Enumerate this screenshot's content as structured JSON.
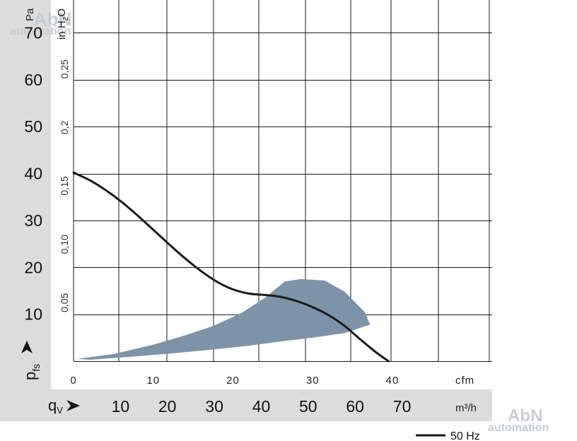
{
  "chart_data": {
    "type": "line",
    "y_left": {
      "unit": "Pa",
      "ticks": [
        10,
        20,
        30,
        40,
        50,
        60,
        70
      ],
      "range": [
        0,
        77
      ]
    },
    "y_right": {
      "unit": "in H₂O",
      "unit_base": "in H",
      "unit_sub": "2",
      "unit_end": "O",
      "ticks": [
        0.05,
        0.1,
        0.15,
        0.2,
        0.25
      ],
      "tick_labels": [
        "0,05",
        "0,10",
        "0,15",
        "0,2",
        "0,25"
      ]
    },
    "x_top": {
      "unit": "cfm",
      "ticks": [
        0,
        10,
        20,
        30,
        40
      ],
      "range": [
        0,
        52.5
      ]
    },
    "x_bottom": {
      "unit": "m³/h",
      "symbol": "qV",
      "ticks": [
        10,
        20,
        30,
        40,
        50,
        60,
        70
      ]
    },
    "y_symbol": "pfs",
    "series": [
      {
        "name": "50 Hz",
        "color": "#1a1a1a",
        "x": [
          0,
          2,
          4,
          6,
          8,
          10,
          12,
          14,
          16,
          18,
          20,
          22,
          24,
          26,
          28,
          30,
          32,
          34,
          36,
          38,
          39.5
        ],
        "y": [
          40.2,
          38.6,
          36.5,
          34.0,
          31.1,
          28.0,
          24.9,
          21.9,
          19.2,
          16.9,
          15.3,
          14.4,
          14.1,
          13.7,
          12.8,
          11.5,
          9.8,
          7.5,
          4.6,
          1.8,
          0
        ]
      }
    ],
    "operating_area": {
      "color": "#7d94a8",
      "x": [
        0.5,
        5,
        10,
        14,
        17.5,
        21,
        24,
        26.5,
        28.5,
        31.5,
        34,
        36.5,
        37.2,
        34,
        30,
        26,
        22,
        17,
        12,
        7,
        2,
        0.5
      ],
      "y": [
        0.5,
        1.5,
        3.5,
        5.5,
        7.5,
        10.2,
        13.5,
        17.0,
        17.5,
        17.2,
        14.8,
        10.5,
        7.8,
        6.0,
        5.0,
        4.2,
        3.3,
        2.4,
        1.6,
        0.9,
        0.3,
        0.5
      ]
    },
    "legend": {
      "placement": "bottom-right",
      "label": "50 Hz"
    },
    "grid": true
  },
  "watermark": {
    "line1": "AbN",
    "line2": "automation"
  }
}
